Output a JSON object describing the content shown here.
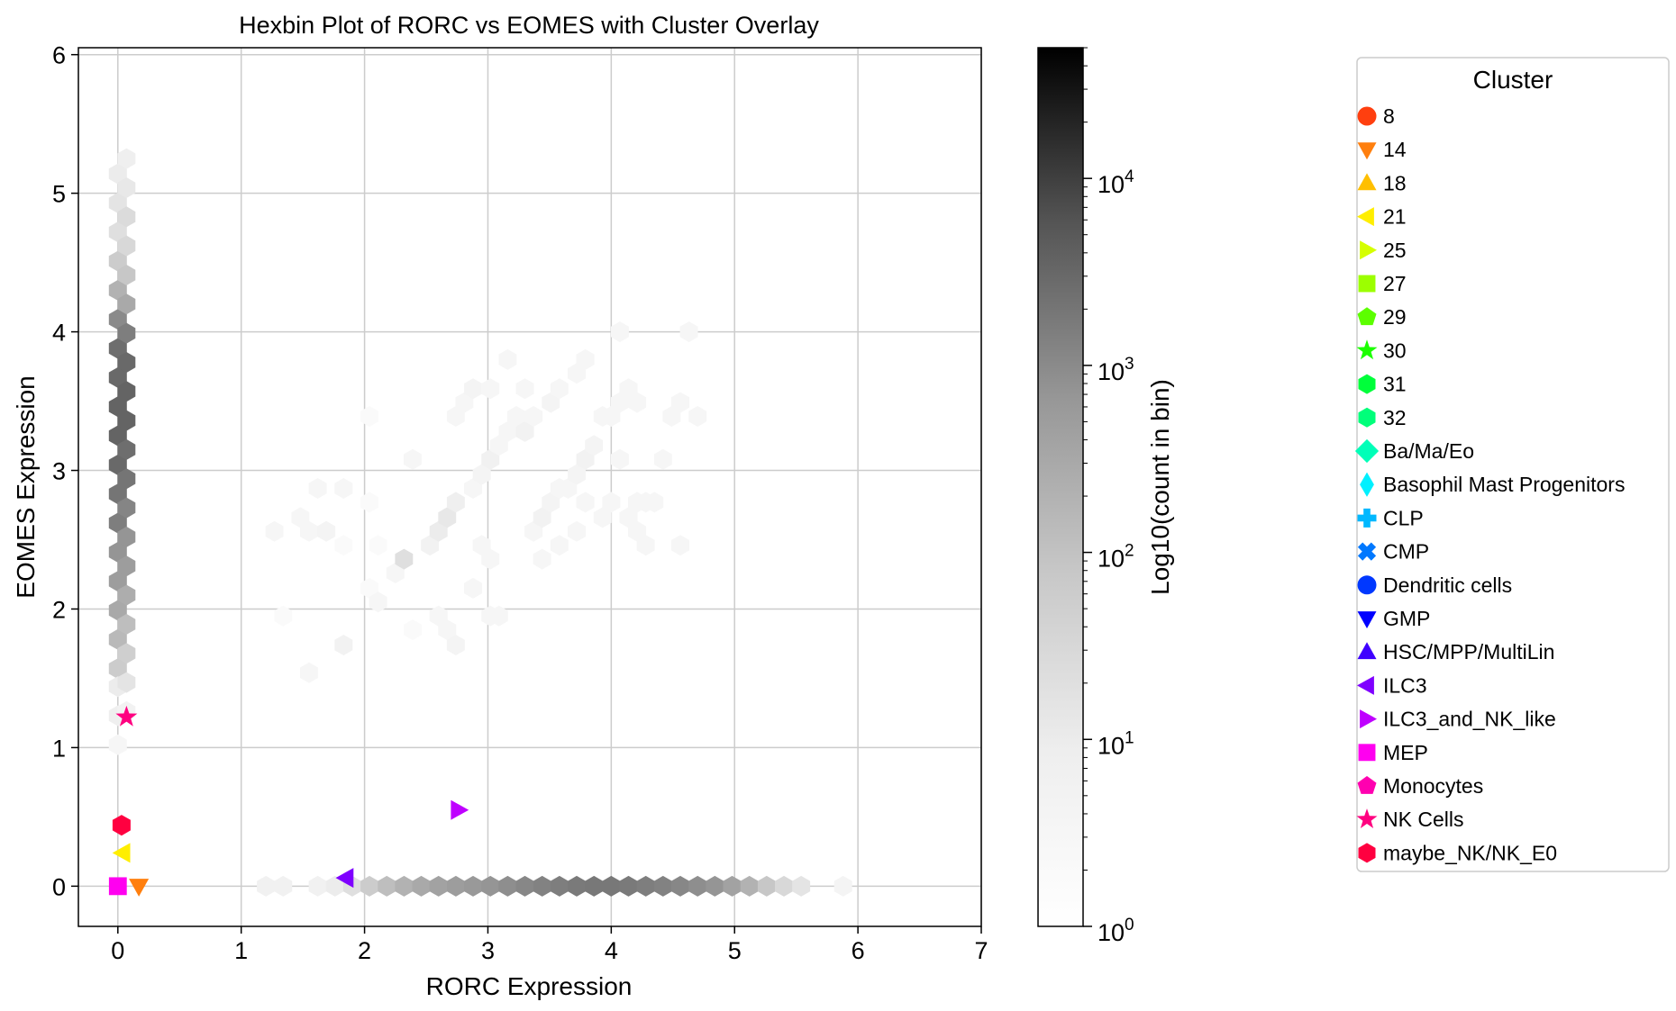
{
  "chart_data": {
    "type": "scatter",
    "title": "Hexbin Plot of RORC vs EOMES with Cluster Overlay",
    "xlabel": "RORC Expression",
    "ylabel": "EOMES Expression",
    "xlim": [
      -0.32,
      7.0
    ],
    "ylim": [
      -0.29,
      6.05
    ],
    "xticks": [
      0,
      1,
      2,
      3,
      4,
      5,
      6,
      7
    ],
    "yticks": [
      0,
      1,
      2,
      3,
      4,
      5,
      6
    ],
    "grid": true,
    "hexbin": {
      "scale": "log",
      "colormap": "Greys",
      "hexes": [
        {
          "x": 0.0,
          "y": 5.14,
          "c": 10
        },
        {
          "x": 0.0,
          "y": 4.93,
          "c": 15
        },
        {
          "x": 0.0,
          "y": 4.72,
          "c": 20
        },
        {
          "x": 0.0,
          "y": 4.51,
          "c": 60
        },
        {
          "x": 0.0,
          "y": 4.3,
          "c": 200
        },
        {
          "x": 0.0,
          "y": 4.09,
          "c": 1000
        },
        {
          "x": 0.0,
          "y": 3.88,
          "c": 2500
        },
        {
          "x": 0.0,
          "y": 3.67,
          "c": 3000
        },
        {
          "x": 0.0,
          "y": 3.46,
          "c": 3500
        },
        {
          "x": 0.0,
          "y": 3.25,
          "c": 3500
        },
        {
          "x": 0.0,
          "y": 3.04,
          "c": 3000
        },
        {
          "x": 0.0,
          "y": 2.83,
          "c": 2000
        },
        {
          "x": 0.0,
          "y": 2.62,
          "c": 1500
        },
        {
          "x": 0.0,
          "y": 2.41,
          "c": 700
        },
        {
          "x": 0.0,
          "y": 2.2,
          "c": 500
        },
        {
          "x": 0.0,
          "y": 1.99,
          "c": 300
        },
        {
          "x": 0.0,
          "y": 1.78,
          "c": 150
        },
        {
          "x": 0.0,
          "y": 1.57,
          "c": 60
        },
        {
          "x": 0.0,
          "y": 1.44,
          "c": 10
        },
        {
          "x": 0.0,
          "y": 1.23,
          "c": 8
        },
        {
          "x": 0.0,
          "y": 1.02,
          "c": 3
        },
        {
          "x": 0.07,
          "y": 5.25,
          "c": 8
        },
        {
          "x": 0.07,
          "y": 5.04,
          "c": 12
        },
        {
          "x": 0.07,
          "y": 4.83,
          "c": 25
        },
        {
          "x": 0.07,
          "y": 4.62,
          "c": 30
        },
        {
          "x": 0.07,
          "y": 4.41,
          "c": 80
        },
        {
          "x": 0.07,
          "y": 4.2,
          "c": 300
        },
        {
          "x": 0.07,
          "y": 3.99,
          "c": 1500
        },
        {
          "x": 0.07,
          "y": 3.78,
          "c": 3000
        },
        {
          "x": 0.07,
          "y": 3.57,
          "c": 3500
        },
        {
          "x": 0.07,
          "y": 3.36,
          "c": 3500
        },
        {
          "x": 0.07,
          "y": 3.15,
          "c": 2500
        },
        {
          "x": 0.07,
          "y": 2.94,
          "c": 2000
        },
        {
          "x": 0.07,
          "y": 2.73,
          "c": 1200
        },
        {
          "x": 0.07,
          "y": 2.52,
          "c": 700
        },
        {
          "x": 0.07,
          "y": 2.31,
          "c": 500
        },
        {
          "x": 0.07,
          "y": 2.1,
          "c": 250
        },
        {
          "x": 0.07,
          "y": 1.89,
          "c": 120
        },
        {
          "x": 0.07,
          "y": 1.68,
          "c": 50
        },
        {
          "x": 0.07,
          "y": 1.47,
          "c": 15
        },
        {
          "x": 0.07,
          "y": 1.26,
          "c": 5
        },
        {
          "x": 1.2,
          "y": 0.0,
          "c": 6
        },
        {
          "x": 1.34,
          "y": 0.0,
          "c": 6
        },
        {
          "x": 1.62,
          "y": 0.0,
          "c": 6
        },
        {
          "x": 1.76,
          "y": 0.0,
          "c": 10
        },
        {
          "x": 1.9,
          "y": 0.0,
          "c": 20
        },
        {
          "x": 2.04,
          "y": 0.0,
          "c": 60
        },
        {
          "x": 2.18,
          "y": 0.0,
          "c": 120
        },
        {
          "x": 2.32,
          "y": 0.0,
          "c": 200
        },
        {
          "x": 2.46,
          "y": 0.0,
          "c": 300
        },
        {
          "x": 2.6,
          "y": 0.0,
          "c": 400
        },
        {
          "x": 2.74,
          "y": 0.0,
          "c": 500
        },
        {
          "x": 2.88,
          "y": 0.0,
          "c": 600
        },
        {
          "x": 3.02,
          "y": 0.0,
          "c": 700
        },
        {
          "x": 3.16,
          "y": 0.0,
          "c": 900
        },
        {
          "x": 3.3,
          "y": 0.0,
          "c": 1100
        },
        {
          "x": 3.44,
          "y": 0.0,
          "c": 1300
        },
        {
          "x": 3.58,
          "y": 0.0,
          "c": 1500
        },
        {
          "x": 3.72,
          "y": 0.0,
          "c": 1700
        },
        {
          "x": 3.86,
          "y": 0.0,
          "c": 1800
        },
        {
          "x": 4.0,
          "y": 0.0,
          "c": 1800
        },
        {
          "x": 4.14,
          "y": 0.0,
          "c": 1700
        },
        {
          "x": 4.28,
          "y": 0.0,
          "c": 1500
        },
        {
          "x": 4.42,
          "y": 0.0,
          "c": 1300
        },
        {
          "x": 4.56,
          "y": 0.0,
          "c": 1100
        },
        {
          "x": 4.7,
          "y": 0.0,
          "c": 900
        },
        {
          "x": 4.84,
          "y": 0.0,
          "c": 700
        },
        {
          "x": 4.98,
          "y": 0.0,
          "c": 400
        },
        {
          "x": 5.12,
          "y": 0.0,
          "c": 200
        },
        {
          "x": 5.26,
          "y": 0.0,
          "c": 80
        },
        {
          "x": 5.4,
          "y": 0.0,
          "c": 30
        },
        {
          "x": 5.54,
          "y": 0.0,
          "c": 15
        },
        {
          "x": 5.88,
          "y": 0.0,
          "c": 4
        },
        {
          "x": 1.27,
          "y": 2.56,
          "c": 3
        },
        {
          "x": 1.48,
          "y": 2.66,
          "c": 3
        },
        {
          "x": 1.55,
          "y": 2.56,
          "c": 3
        },
        {
          "x": 1.69,
          "y": 2.56,
          "c": 4
        },
        {
          "x": 1.62,
          "y": 2.87,
          "c": 3
        },
        {
          "x": 1.34,
          "y": 1.95,
          "c": 2
        },
        {
          "x": 1.55,
          "y": 1.54,
          "c": 3
        },
        {
          "x": 1.83,
          "y": 1.74,
          "c": 5
        },
        {
          "x": 1.83,
          "y": 2.46,
          "c": 2
        },
        {
          "x": 1.83,
          "y": 2.87,
          "c": 3
        },
        {
          "x": 2.04,
          "y": 2.77,
          "c": 2
        },
        {
          "x": 2.04,
          "y": 2.15,
          "c": 2
        },
        {
          "x": 2.11,
          "y": 2.05,
          "c": 3
        },
        {
          "x": 2.11,
          "y": 2.46,
          "c": 2
        },
        {
          "x": 2.04,
          "y": 3.39,
          "c": 2
        },
        {
          "x": 2.25,
          "y": 2.26,
          "c": 3
        },
        {
          "x": 2.32,
          "y": 2.36,
          "c": 20
        },
        {
          "x": 2.39,
          "y": 3.08,
          "c": 3
        },
        {
          "x": 2.39,
          "y": 1.85,
          "c": 2
        },
        {
          "x": 2.6,
          "y": 1.95,
          "c": 3
        },
        {
          "x": 2.67,
          "y": 1.85,
          "c": 3
        },
        {
          "x": 2.74,
          "y": 1.74,
          "c": 4
        },
        {
          "x": 2.53,
          "y": 2.46,
          "c": 5
        },
        {
          "x": 2.6,
          "y": 2.56,
          "c": 10
        },
        {
          "x": 2.67,
          "y": 2.66,
          "c": 12
        },
        {
          "x": 2.74,
          "y": 2.77,
          "c": 8
        },
        {
          "x": 2.74,
          "y": 3.39,
          "c": 3
        },
        {
          "x": 2.81,
          "y": 3.49,
          "c": 3
        },
        {
          "x": 2.88,
          "y": 3.59,
          "c": 4
        },
        {
          "x": 2.88,
          "y": 2.87,
          "c": 3
        },
        {
          "x": 2.95,
          "y": 2.97,
          "c": 4
        },
        {
          "x": 3.02,
          "y": 3.08,
          "c": 6
        },
        {
          "x": 3.02,
          "y": 3.59,
          "c": 3
        },
        {
          "x": 2.88,
          "y": 2.15,
          "c": 3
        },
        {
          "x": 3.02,
          "y": 1.95,
          "c": 3
        },
        {
          "x": 3.09,
          "y": 1.95,
          "c": 3
        },
        {
          "x": 2.95,
          "y": 2.46,
          "c": 3
        },
        {
          "x": 3.02,
          "y": 2.36,
          "c": 3
        },
        {
          "x": 3.09,
          "y": 3.18,
          "c": 3
        },
        {
          "x": 3.16,
          "y": 3.28,
          "c": 3
        },
        {
          "x": 3.23,
          "y": 3.39,
          "c": 3
        },
        {
          "x": 3.16,
          "y": 3.8,
          "c": 3
        },
        {
          "x": 3.3,
          "y": 3.59,
          "c": 3
        },
        {
          "x": 3.3,
          "y": 3.28,
          "c": 5
        },
        {
          "x": 3.37,
          "y": 3.39,
          "c": 3
        },
        {
          "x": 3.37,
          "y": 2.56,
          "c": 3
        },
        {
          "x": 3.44,
          "y": 2.66,
          "c": 5
        },
        {
          "x": 3.51,
          "y": 2.77,
          "c": 4
        },
        {
          "x": 3.44,
          "y": 2.36,
          "c": 3
        },
        {
          "x": 3.51,
          "y": 3.49,
          "c": 4
        },
        {
          "x": 3.58,
          "y": 3.59,
          "c": 3
        },
        {
          "x": 3.58,
          "y": 2.87,
          "c": 3
        },
        {
          "x": 3.58,
          "y": 2.46,
          "c": 3
        },
        {
          "x": 3.65,
          "y": 2.87,
          "c": 3
        },
        {
          "x": 3.72,
          "y": 2.97,
          "c": 4
        },
        {
          "x": 3.79,
          "y": 3.08,
          "c": 5
        },
        {
          "x": 3.86,
          "y": 3.18,
          "c": 4
        },
        {
          "x": 3.72,
          "y": 3.7,
          "c": 3
        },
        {
          "x": 3.79,
          "y": 3.8,
          "c": 3
        },
        {
          "x": 3.79,
          "y": 2.77,
          "c": 3
        },
        {
          "x": 3.72,
          "y": 2.56,
          "c": 3
        },
        {
          "x": 3.93,
          "y": 3.39,
          "c": 3
        },
        {
          "x": 3.93,
          "y": 2.66,
          "c": 3
        },
        {
          "x": 4.0,
          "y": 2.77,
          "c": 3
        },
        {
          "x": 4.0,
          "y": 3.39,
          "c": 3
        },
        {
          "x": 4.07,
          "y": 3.49,
          "c": 3
        },
        {
          "x": 4.14,
          "y": 3.59,
          "c": 3
        },
        {
          "x": 4.21,
          "y": 3.49,
          "c": 3
        },
        {
          "x": 4.07,
          "y": 4.0,
          "c": 3
        },
        {
          "x": 4.14,
          "y": 2.66,
          "c": 3
        },
        {
          "x": 4.21,
          "y": 2.77,
          "c": 3
        },
        {
          "x": 4.28,
          "y": 2.77,
          "c": 3
        },
        {
          "x": 4.35,
          "y": 2.77,
          "c": 3
        },
        {
          "x": 4.21,
          "y": 2.56,
          "c": 3
        },
        {
          "x": 4.28,
          "y": 2.46,
          "c": 3
        },
        {
          "x": 4.42,
          "y": 3.08,
          "c": 3
        },
        {
          "x": 4.49,
          "y": 3.39,
          "c": 3
        },
        {
          "x": 4.56,
          "y": 3.49,
          "c": 3
        },
        {
          "x": 4.56,
          "y": 2.46,
          "c": 3
        },
        {
          "x": 4.7,
          "y": 3.39,
          "c": 3
        },
        {
          "x": 4.63,
          "y": 4.0,
          "c": 3
        },
        {
          "x": 4.07,
          "y": 3.08,
          "c": 3
        }
      ]
    },
    "colorbar": {
      "label": "Log10(count in bin)",
      "scale": "log",
      "range": [
        1,
        50000
      ],
      "ticks": [
        {
          "value": 1,
          "base": "10",
          "exp": "0"
        },
        {
          "value": 10,
          "base": "10",
          "exp": "1"
        },
        {
          "value": 100,
          "base": "10",
          "exp": "2"
        },
        {
          "value": 1000,
          "base": "10",
          "exp": "3"
        },
        {
          "value": 10000,
          "base": "10",
          "exp": "4"
        }
      ]
    },
    "legend": {
      "title": "Cluster",
      "placement": "outside-right",
      "entries": [
        {
          "name": "8",
          "color": "#ff3f0f",
          "marker": "circle",
          "x": null,
          "y": null
        },
        {
          "name": "14",
          "color": "#ff7f0e",
          "marker": "triangle-down",
          "x": 0.17,
          "y": 0.0
        },
        {
          "name": "18",
          "color": "#ffbf00",
          "marker": "triangle-up",
          "x": null,
          "y": null
        },
        {
          "name": "21",
          "color": "#ffee00",
          "marker": "triangle-left",
          "x": 0.04,
          "y": 0.24
        },
        {
          "name": "25",
          "color": "#d5ff00",
          "marker": "triangle-right",
          "x": null,
          "y": null
        },
        {
          "name": "27",
          "color": "#9cff00",
          "marker": "square",
          "x": null,
          "y": null
        },
        {
          "name": "29",
          "color": "#5cff00",
          "marker": "pentagon",
          "x": null,
          "y": null
        },
        {
          "name": "30",
          "color": "#1cff00",
          "marker": "star",
          "x": null,
          "y": null
        },
        {
          "name": "31",
          "color": "#00ff3a",
          "marker": "hexagon",
          "x": null,
          "y": null
        },
        {
          "name": "32",
          "color": "#00ff7a",
          "marker": "hexagon",
          "x": null,
          "y": null
        },
        {
          "name": "Ba/Ma/Eo",
          "color": "#00ffb8",
          "marker": "diamond",
          "x": null,
          "y": null
        },
        {
          "name": "Basophil Mast Progenitors",
          "color": "#00f0ff",
          "marker": "thin-diamond",
          "x": null,
          "y": null
        },
        {
          "name": "CLP",
          "color": "#00b8ff",
          "marker": "plus",
          "x": null,
          "y": null
        },
        {
          "name": "CMP",
          "color": "#0078ff",
          "marker": "x",
          "x": null,
          "y": null
        },
        {
          "name": "Dendritic cells",
          "color": "#0038ff",
          "marker": "circle",
          "x": null,
          "y": null
        },
        {
          "name": "GMP",
          "color": "#0000ff",
          "marker": "triangle-down",
          "x": null,
          "y": null
        },
        {
          "name": "HSC/MPP/MultiLin",
          "color": "#3f00ff",
          "marker": "triangle-up",
          "x": null,
          "y": null
        },
        {
          "name": "ILC3",
          "color": "#7f00ff",
          "marker": "triangle-left",
          "x": 1.85,
          "y": 0.06
        },
        {
          "name": "ILC3_and_NK_like",
          "color": "#bf00ff",
          "marker": "triangle-right",
          "x": 2.76,
          "y": 0.55
        },
        {
          "name": "MEP",
          "color": "#ff00f0",
          "marker": "square",
          "x": 0.0,
          "y": 0.0
        },
        {
          "name": "Monocytes",
          "color": "#ff00b0",
          "marker": "pentagon",
          "x": null,
          "y": null
        },
        {
          "name": "NK Cells",
          "color": "#ff0080",
          "marker": "star",
          "x": 0.07,
          "y": 1.22
        },
        {
          "name": "maybe_NK/NK_E0",
          "color": "#ff0040",
          "marker": "hexagon",
          "x": 0.03,
          "y": 0.44
        }
      ]
    }
  }
}
